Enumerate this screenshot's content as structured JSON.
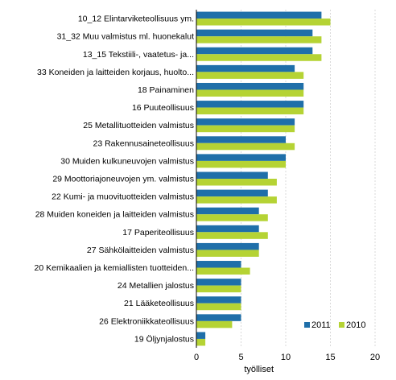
{
  "chart_data": {
    "type": "bar",
    "orientation": "horizontal",
    "title": "",
    "xlabel": "työlliset",
    "ylabel": "",
    "xlim": [
      0,
      20
    ],
    "xticks": [
      0,
      5,
      10,
      15,
      20
    ],
    "grid": true,
    "legend_position": "bottom-right",
    "categories": [
      "10_12 Elintarviketeollisuus ym.",
      "31_32 Muu valmistus ml. huonekalut",
      "13_15 Tekstiili-, vaatetus- ja...",
      "33 Koneiden ja laitteiden korjaus, huolto...",
      "18 Painaminen",
      "16 Puuteollisuus",
      "25 Metallituotteiden valmistus",
      "23 Rakennusaineteollisuus",
      "30 Muiden kulkuneuvojen valmistus",
      "29 Moottoriajoneuvojen ym. valmistus",
      "22 Kumi- ja muovituotteiden valmistus",
      "28 Muiden koneiden ja laitteiden valmistus",
      "17 Paperiteollisuus",
      "27 Sähkölaitteiden valmistus",
      "20 Kemikaalien ja kemiallisten tuotteiden...",
      "24 Metallien jalostus",
      "21 Lääketeollisuus",
      "26 Elektroniikkateollisuus",
      "19 Öljynjalostus"
    ],
    "series": [
      {
        "name": "2011",
        "color": "#1f6fa9",
        "values": [
          14,
          13,
          13,
          11,
          12,
          12,
          11,
          10,
          10,
          8,
          8,
          7,
          7,
          7,
          5,
          5,
          5,
          5,
          1
        ]
      },
      {
        "name": "2010",
        "color": "#b5d334",
        "values": [
          15,
          14,
          14,
          12,
          12,
          12,
          11,
          11,
          10,
          9,
          9,
          8,
          8,
          7,
          6,
          5,
          5,
          4,
          1
        ]
      }
    ]
  }
}
